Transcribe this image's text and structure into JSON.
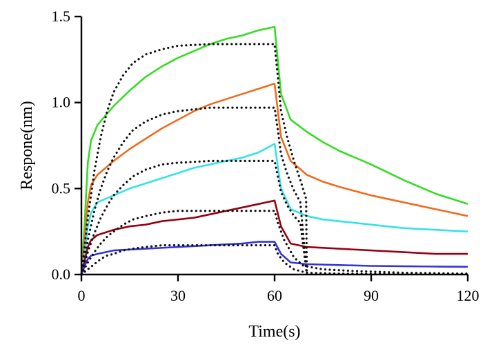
{
  "chart_data": {
    "type": "line",
    "title": "",
    "xlabel": "Time(s)",
    "ylabel": "Respone(nm)",
    "xlim": [
      0,
      120
    ],
    "ylim": [
      0,
      1.5
    ],
    "xticks": [
      0,
      30,
      60,
      90,
      120
    ],
    "yticks": [
      0.0,
      0.5,
      1.0,
      1.5
    ],
    "xtick_labels": [
      "0",
      "30",
      "60",
      "90",
      "120"
    ],
    "ytick_labels": [
      "0.0",
      "0.5",
      "1.0",
      "1.5"
    ],
    "grid": false,
    "legend": "none",
    "series": [
      {
        "color": "#33dd22",
        "style": "solid",
        "points": [
          [
            0,
            0
          ],
          [
            1,
            0.3
          ],
          [
            2,
            0.65
          ],
          [
            3,
            0.78
          ],
          [
            5,
            0.87
          ],
          [
            10,
            0.98
          ],
          [
            15,
            1.07
          ],
          [
            20,
            1.15
          ],
          [
            25,
            1.21
          ],
          [
            30,
            1.26
          ],
          [
            35,
            1.3
          ],
          [
            40,
            1.34
          ],
          [
            45,
            1.37
          ],
          [
            50,
            1.39
          ],
          [
            55,
            1.42
          ],
          [
            60,
            1.44
          ],
          [
            62,
            1.05
          ],
          [
            65,
            0.9
          ],
          [
            70,
            0.83
          ],
          [
            75,
            0.77
          ],
          [
            80,
            0.72
          ],
          [
            90,
            0.64
          ],
          [
            100,
            0.55
          ],
          [
            110,
            0.47
          ],
          [
            120,
            0.41
          ]
        ]
      },
      {
        "color": "#f26b1d",
        "style": "solid",
        "points": [
          [
            0,
            0
          ],
          [
            1,
            0.2
          ],
          [
            2,
            0.42
          ],
          [
            3,
            0.52
          ],
          [
            5,
            0.58
          ],
          [
            10,
            0.66
          ],
          [
            15,
            0.73
          ],
          [
            20,
            0.79
          ],
          [
            25,
            0.85
          ],
          [
            30,
            0.9
          ],
          [
            35,
            0.95
          ],
          [
            40,
            0.99
          ],
          [
            45,
            1.02
          ],
          [
            50,
            1.05
          ],
          [
            55,
            1.08
          ],
          [
            60,
            1.11
          ],
          [
            62,
            0.8
          ],
          [
            65,
            0.66
          ],
          [
            70,
            0.58
          ],
          [
            75,
            0.54
          ],
          [
            80,
            0.51
          ],
          [
            90,
            0.46
          ],
          [
            100,
            0.42
          ],
          [
            110,
            0.38
          ],
          [
            120,
            0.34
          ]
        ]
      },
      {
        "color": "#33e2e8",
        "style": "solid",
        "points": [
          [
            0,
            0
          ],
          [
            1,
            0.12
          ],
          [
            2,
            0.28
          ],
          [
            3,
            0.36
          ],
          [
            5,
            0.42
          ],
          [
            10,
            0.46
          ],
          [
            15,
            0.5
          ],
          [
            20,
            0.53
          ],
          [
            25,
            0.56
          ],
          [
            30,
            0.59
          ],
          [
            35,
            0.62
          ],
          [
            40,
            0.64
          ],
          [
            45,
            0.66
          ],
          [
            50,
            0.68
          ],
          [
            55,
            0.71
          ],
          [
            60,
            0.76
          ],
          [
            62,
            0.5
          ],
          [
            65,
            0.38
          ],
          [
            70,
            0.34
          ],
          [
            75,
            0.32
          ],
          [
            80,
            0.31
          ],
          [
            90,
            0.29
          ],
          [
            100,
            0.27
          ],
          [
            110,
            0.26
          ],
          [
            120,
            0.25
          ]
        ]
      },
      {
        "color": "#990011",
        "style": "solid",
        "points": [
          [
            0,
            0
          ],
          [
            1,
            0.08
          ],
          [
            2,
            0.16
          ],
          [
            3,
            0.2
          ],
          [
            5,
            0.23
          ],
          [
            10,
            0.26
          ],
          [
            15,
            0.28
          ],
          [
            20,
            0.29
          ],
          [
            25,
            0.31
          ],
          [
            30,
            0.32
          ],
          [
            35,
            0.33
          ],
          [
            40,
            0.35
          ],
          [
            45,
            0.37
          ],
          [
            50,
            0.39
          ],
          [
            55,
            0.41
          ],
          [
            60,
            0.43
          ],
          [
            62,
            0.28
          ],
          [
            65,
            0.18
          ],
          [
            70,
            0.16
          ],
          [
            80,
            0.15
          ],
          [
            90,
            0.14
          ],
          [
            100,
            0.13
          ],
          [
            110,
            0.12
          ],
          [
            120,
            0.12
          ]
        ]
      },
      {
        "color": "#3333dd",
        "style": "solid",
        "points": [
          [
            0,
            0
          ],
          [
            1,
            0.05
          ],
          [
            2,
            0.09
          ],
          [
            3,
            0.11
          ],
          [
            5,
            0.12
          ],
          [
            10,
            0.14
          ],
          [
            20,
            0.15
          ],
          [
            30,
            0.16
          ],
          [
            40,
            0.17
          ],
          [
            50,
            0.18
          ],
          [
            55,
            0.19
          ],
          [
            60,
            0.19
          ],
          [
            62,
            0.12
          ],
          [
            65,
            0.07
          ],
          [
            70,
            0.06
          ],
          [
            80,
            0.055
          ],
          [
            90,
            0.05
          ],
          [
            100,
            0.048
          ],
          [
            110,
            0.046
          ],
          [
            120,
            0.045
          ]
        ]
      },
      {
        "color": "#111111",
        "style": "dotted",
        "points": [
          [
            0,
            0
          ],
          [
            2,
            0.33
          ],
          [
            4,
            0.6
          ],
          [
            6,
            0.8
          ],
          [
            8,
            0.95
          ],
          [
            10,
            1.06
          ],
          [
            13,
            1.16
          ],
          [
            16,
            1.23
          ],
          [
            20,
            1.28
          ],
          [
            25,
            1.31
          ],
          [
            30,
            1.33
          ],
          [
            40,
            1.34
          ],
          [
            50,
            1.34
          ],
          [
            60,
            1.34
          ],
          [
            61,
            1.15
          ],
          [
            62,
            0.95
          ],
          [
            64,
            0.79
          ],
          [
            66,
            0.66
          ],
          [
            68,
            0.55
          ],
          [
            69.8,
            0.44
          ],
          [
            70,
            0
          ]
        ]
      },
      {
        "color": "#111111",
        "style": "dotted",
        "points": [
          [
            0,
            0
          ],
          [
            2,
            0.2
          ],
          [
            4,
            0.37
          ],
          [
            6,
            0.5
          ],
          [
            8,
            0.6
          ],
          [
            10,
            0.68
          ],
          [
            13,
            0.77
          ],
          [
            16,
            0.84
          ],
          [
            20,
            0.89
          ],
          [
            25,
            0.93
          ],
          [
            30,
            0.95
          ],
          [
            40,
            0.97
          ],
          [
            50,
            0.97
          ],
          [
            60,
            0.97
          ],
          [
            61,
            0.84
          ],
          [
            62,
            0.7
          ],
          [
            64,
            0.58
          ],
          [
            66,
            0.49
          ],
          [
            68,
            0.42
          ],
          [
            70,
            0
          ]
        ]
      },
      {
        "color": "#111111",
        "style": "dotted",
        "points": [
          [
            0,
            0
          ],
          [
            2,
            0.13
          ],
          [
            4,
            0.24
          ],
          [
            6,
            0.33
          ],
          [
            8,
            0.4
          ],
          [
            10,
            0.46
          ],
          [
            13,
            0.52
          ],
          [
            16,
            0.57
          ],
          [
            20,
            0.61
          ],
          [
            25,
            0.64
          ],
          [
            30,
            0.65
          ],
          [
            40,
            0.66
          ],
          [
            50,
            0.66
          ],
          [
            60,
            0.66
          ],
          [
            61,
            0.57
          ],
          [
            62,
            0.48
          ],
          [
            64,
            0.4
          ],
          [
            66,
            0.34
          ],
          [
            68,
            0.3
          ],
          [
            70,
            0
          ]
        ]
      },
      {
        "color": "#111111",
        "style": "dotted",
        "points": [
          [
            0,
            0
          ],
          [
            2,
            0.07
          ],
          [
            4,
            0.13
          ],
          [
            6,
            0.18
          ],
          [
            8,
            0.22
          ],
          [
            10,
            0.25
          ],
          [
            13,
            0.29
          ],
          [
            16,
            0.32
          ],
          [
            20,
            0.34
          ],
          [
            25,
            0.36
          ],
          [
            30,
            0.37
          ],
          [
            40,
            0.37
          ],
          [
            50,
            0.37
          ],
          [
            60,
            0.37
          ],
          [
            61,
            0.3
          ],
          [
            63,
            0.2
          ],
          [
            66,
            0.1
          ],
          [
            69,
            0.05
          ],
          [
            75,
            0.03
          ],
          [
            85,
            0.02
          ],
          [
            100,
            0.01
          ],
          [
            120,
            0.005
          ]
        ]
      },
      {
        "color": "#111111",
        "style": "dotted",
        "points": [
          [
            0,
            0
          ],
          [
            2,
            0.03
          ],
          [
            4,
            0.06
          ],
          [
            6,
            0.09
          ],
          [
            8,
            0.11
          ],
          [
            10,
            0.12
          ],
          [
            13,
            0.14
          ],
          [
            16,
            0.15
          ],
          [
            20,
            0.16
          ],
          [
            25,
            0.17
          ],
          [
            30,
            0.17
          ],
          [
            40,
            0.17
          ],
          [
            50,
            0.17
          ],
          [
            60,
            0.17
          ],
          [
            61,
            0.12
          ],
          [
            63,
            0.07
          ],
          [
            66,
            0.03
          ],
          [
            70,
            0.01
          ],
          [
            80,
            0.005
          ],
          [
            100,
            0.003
          ],
          [
            120,
            0.002
          ]
        ]
      }
    ]
  }
}
